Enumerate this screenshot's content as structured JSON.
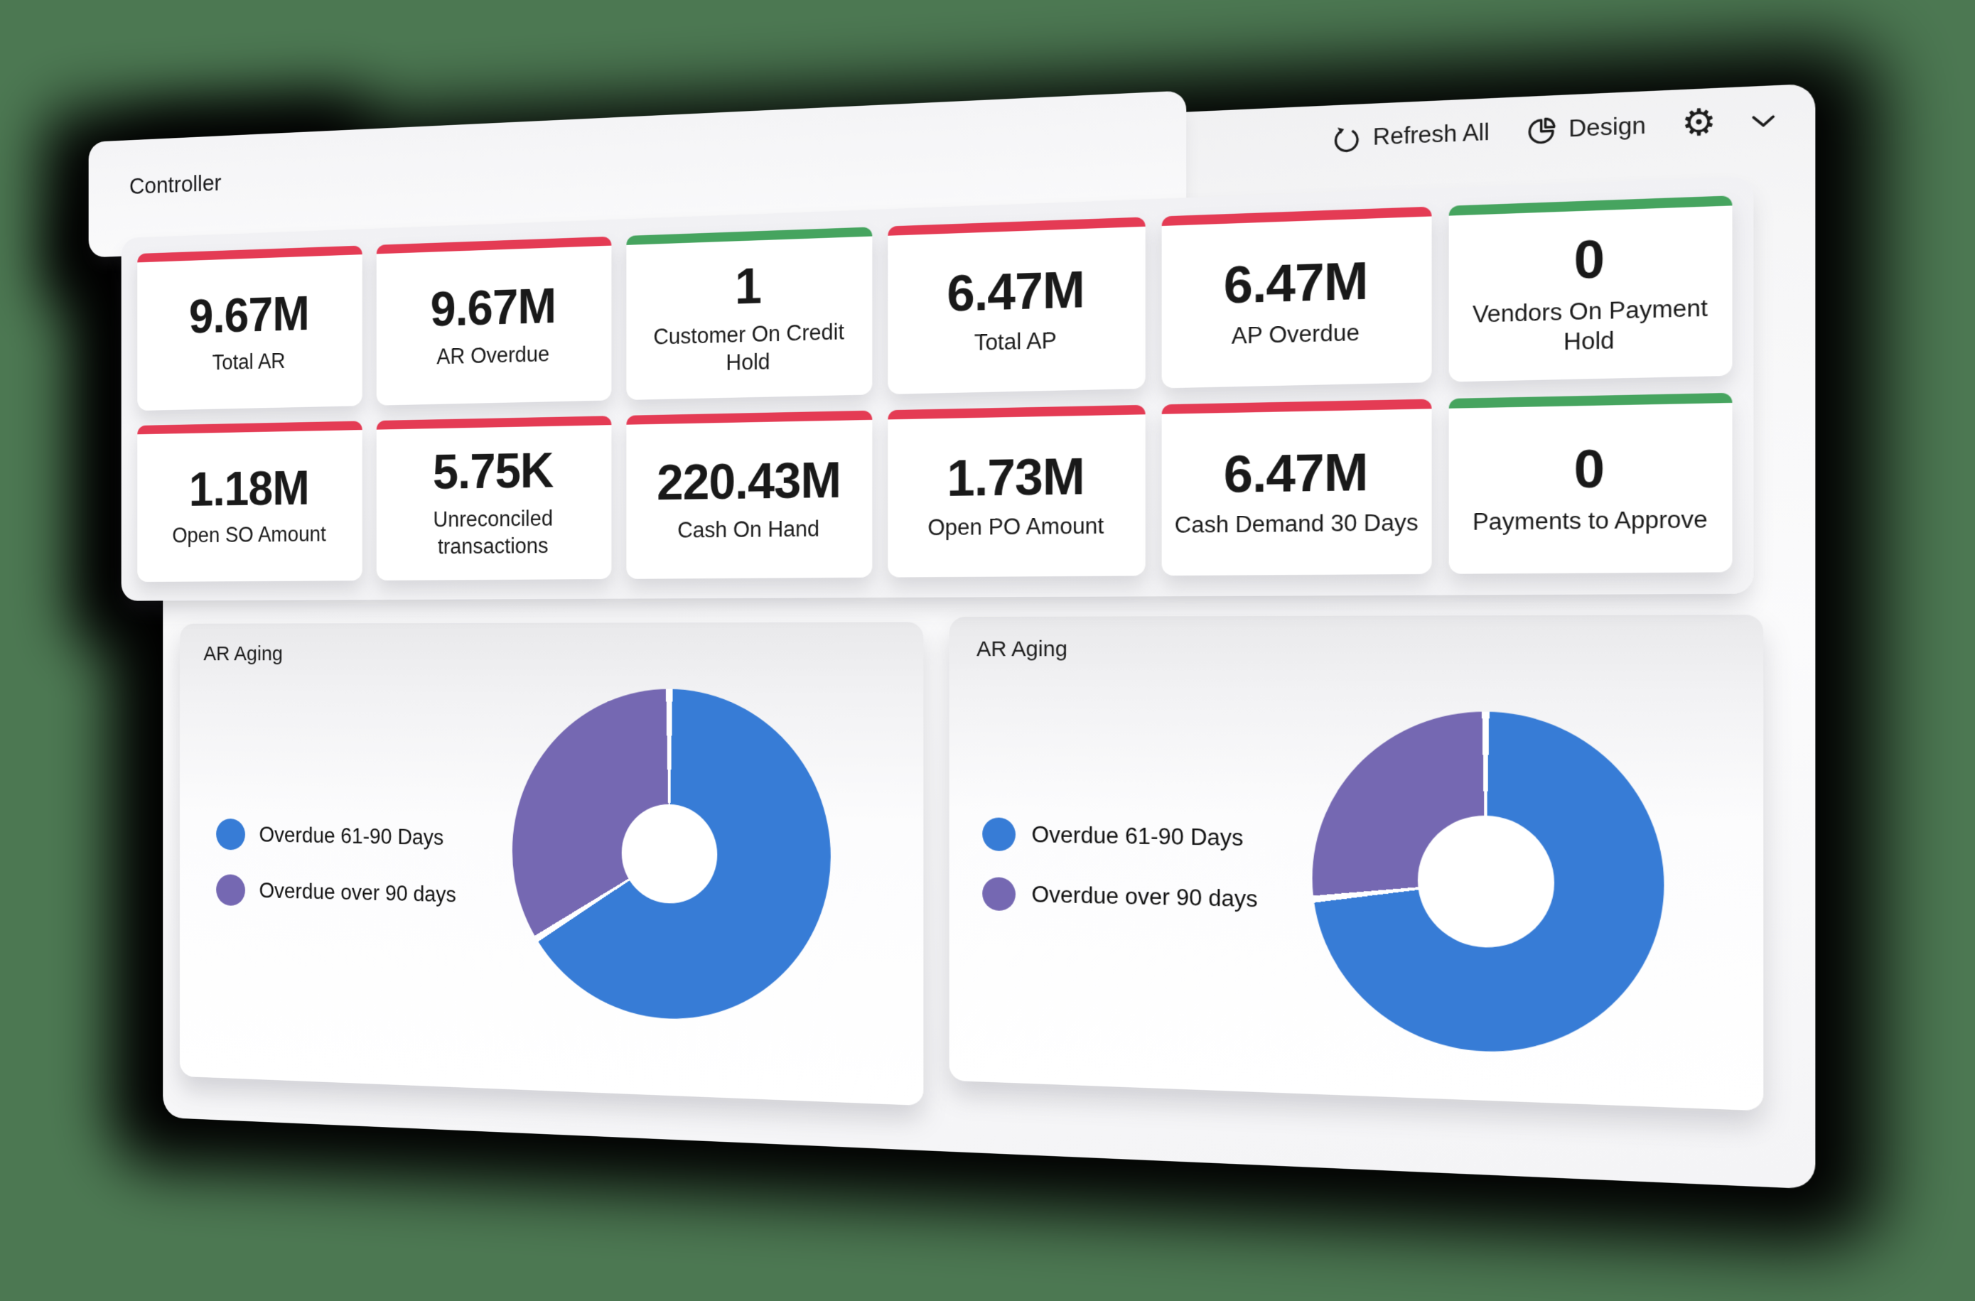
{
  "page": {
    "background_color": "#4C7852"
  },
  "header": {
    "title": "Controller"
  },
  "toolbar": {
    "refresh": {
      "label": "Refresh All"
    },
    "design": {
      "label": "Design"
    }
  },
  "kpi": {
    "status_colors": {
      "alert": "#E43B54",
      "ok": "#46A45F"
    },
    "rows": [
      {
        "cards": [
          {
            "value": "9.67M",
            "label": "Total AR",
            "accent": "#E43B54"
          },
          {
            "value": "9.67M",
            "label": "AR Overdue",
            "accent": "#E43B54"
          },
          {
            "value": "1",
            "label": "Customer On Credit Hold",
            "accent": "#46A45F"
          },
          {
            "value": "6.47M",
            "label": "Total AP",
            "accent": "#E43B54"
          },
          {
            "value": "6.47M",
            "label": "AP Overdue",
            "accent": "#E43B54"
          },
          {
            "value": "0",
            "label": "Vendors On Payment Hold",
            "accent": "#46A45F"
          }
        ]
      },
      {
        "cards": [
          {
            "value": "1.18M",
            "label": "Open SO Amount",
            "accent": "#E43B54"
          },
          {
            "value": "5.75K",
            "label": "Unreconciled transactions",
            "accent": "#E43B54"
          },
          {
            "value": "220.43M",
            "label": "Cash On Hand",
            "accent": "#E43B54"
          },
          {
            "value": "1.73M",
            "label": "Open PO Amount",
            "accent": "#E43B54"
          },
          {
            "value": "6.47M",
            "label": "Cash Demand 30 Days",
            "accent": "#E43B54"
          },
          {
            "value": "0",
            "label": "Payments to Approve",
            "accent": "#46A45F"
          }
        ]
      }
    ]
  },
  "chart_data": [
    {
      "type": "pie",
      "subtype": "donut",
      "title": "AR Aging",
      "labels": [
        "Overdue 61-90 Days",
        "Overdue over 90 days"
      ],
      "values_pct": [
        66,
        34
      ],
      "colors": [
        "#377CD6",
        "#7568B2"
      ],
      "start_angle_deg": 0,
      "direction": "clockwise",
      "inner_radius_pct": 30,
      "legend_position": "left"
    },
    {
      "type": "pie",
      "subtype": "donut",
      "title": "AR Aging",
      "labels": [
        "Overdue 61-90 Days",
        "Overdue over 90 days"
      ],
      "values_pct": [
        73,
        27
      ],
      "colors": [
        "#377CD6",
        "#7568B2"
      ],
      "start_angle_deg": 0,
      "direction": "clockwise",
      "inner_radius_pct": 39,
      "legend_position": "left"
    }
  ]
}
